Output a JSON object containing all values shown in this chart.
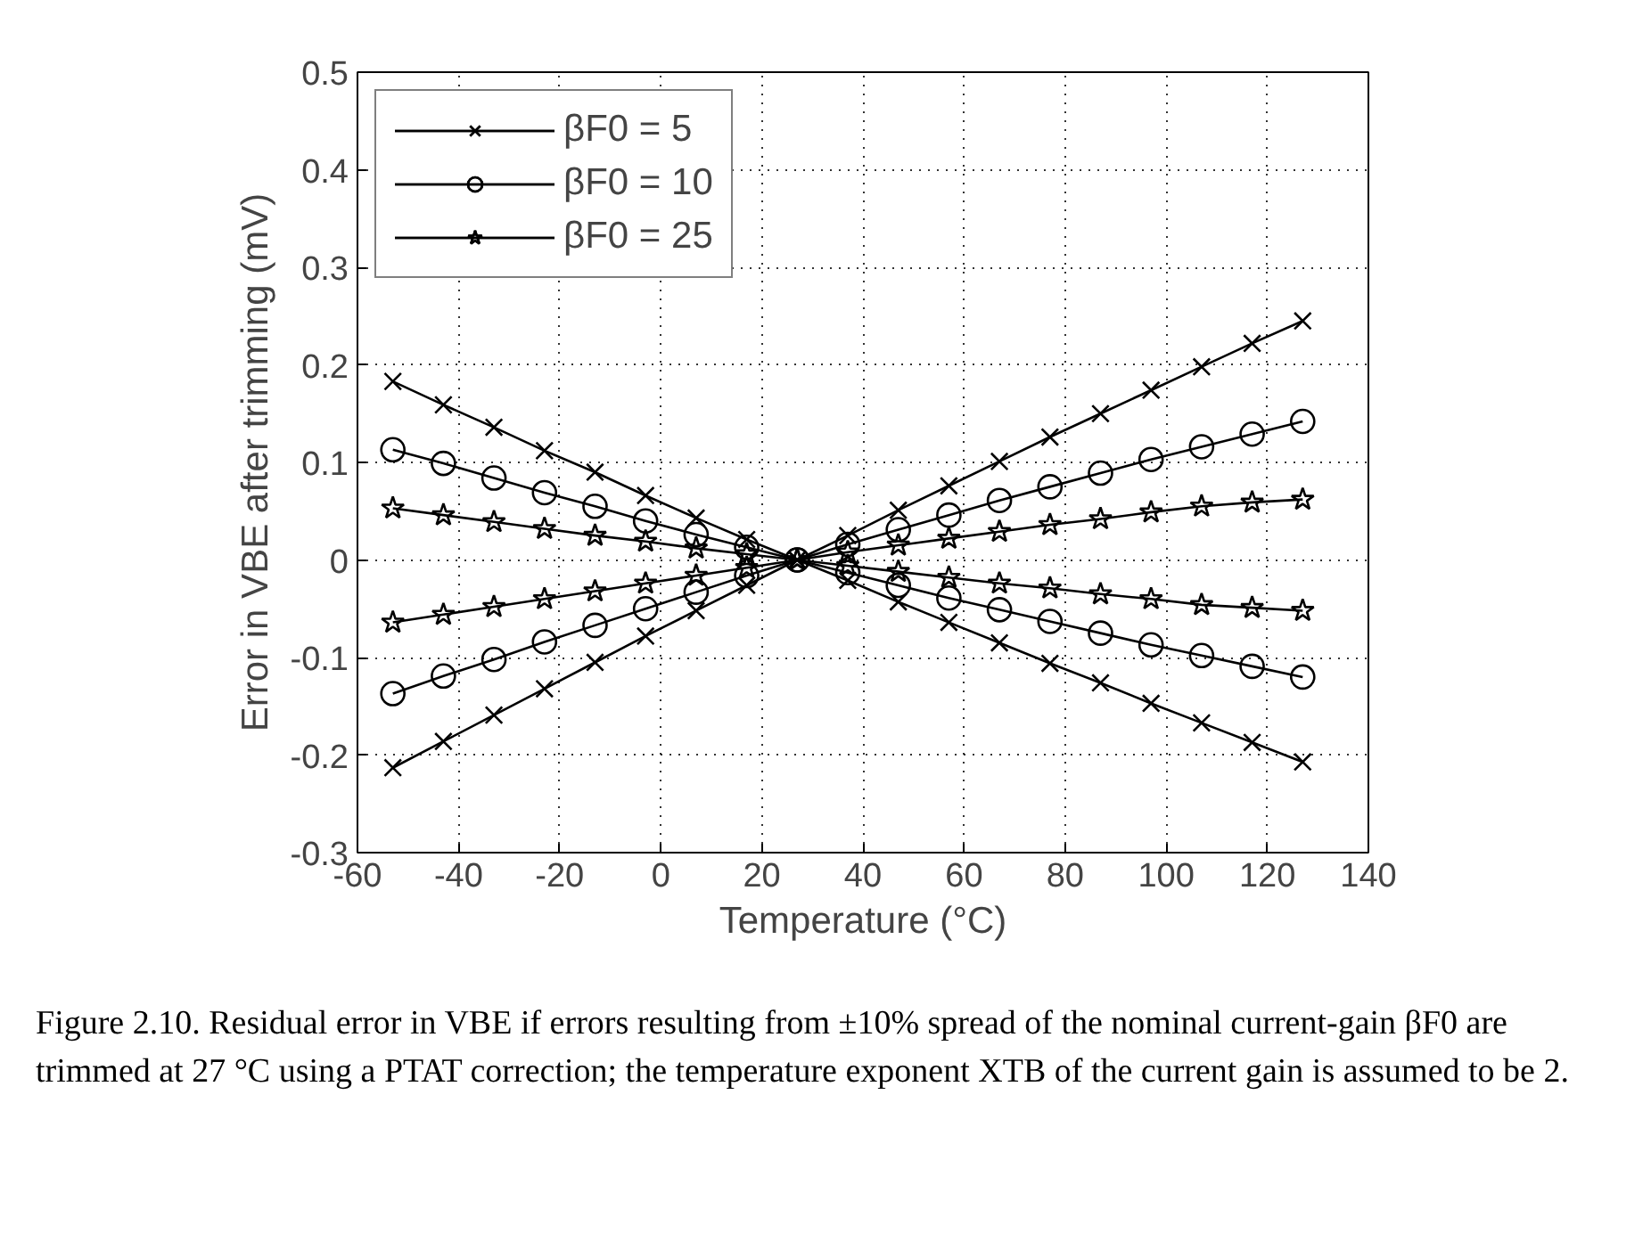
{
  "chart_data": {
    "type": "line",
    "xlabel": "Temperature (°C)",
    "ylabel": "Error in VBE after trimming (mV)",
    "x": [
      -53,
      -43,
      -33,
      -23,
      -13,
      -3,
      7,
      17,
      27,
      37,
      47,
      57,
      67,
      77,
      87,
      97,
      107,
      117,
      127
    ],
    "series": [
      {
        "name": "βF0 = 5",
        "color": "#000000",
        "marker": "cross",
        "values": [
          0.183,
          0.159,
          0.136,
          0.112,
          0.09,
          0.066,
          0.043,
          0.021,
          0,
          -0.021,
          -0.043,
          -0.064,
          -0.085,
          -0.106,
          -0.126,
          -0.147,
          -0.167,
          -0.187,
          -0.207
        ]
      },
      {
        "color": "#000000",
        "marker": "cross",
        "values": [
          -0.213,
          -0.186,
          -0.159,
          -0.132,
          -0.105,
          -0.078,
          -0.052,
          -0.026,
          0,
          0.025,
          0.051,
          0.076,
          0.101,
          0.126,
          0.15,
          0.174,
          0.198,
          0.222,
          0.245
        ]
      },
      {
        "name": "βF0 = 10",
        "color": "#000000",
        "marker": "circle",
        "values": [
          0.113,
          0.099,
          0.084,
          0.069,
          0.055,
          0.04,
          0.026,
          0.013,
          0,
          -0.013,
          -0.026,
          -0.039,
          -0.051,
          -0.063,
          -0.075,
          -0.087,
          -0.098,
          -0.109,
          -0.12
        ]
      },
      {
        "color": "#000000",
        "marker": "circle",
        "values": [
          -0.137,
          -0.119,
          -0.102,
          -0.084,
          -0.067,
          -0.05,
          -0.033,
          -0.016,
          0,
          0.016,
          0.031,
          0.046,
          0.061,
          0.075,
          0.089,
          0.103,
          0.116,
          0.129,
          0.142
        ]
      },
      {
        "name": "βF0 = 25",
        "color": "#000000",
        "marker": "star",
        "values": [
          0.053,
          0.046,
          0.039,
          0.032,
          0.025,
          0.019,
          0.012,
          0.006,
          0,
          -0.006,
          -0.012,
          -0.018,
          -0.024,
          -0.029,
          -0.035,
          -0.04,
          -0.046,
          -0.049,
          -0.052
        ]
      },
      {
        "color": "#000000",
        "marker": "star",
        "values": [
          -0.064,
          -0.056,
          -0.048,
          -0.04,
          -0.032,
          -0.024,
          -0.016,
          -0.008,
          0,
          0.008,
          0.015,
          0.022,
          0.029,
          0.036,
          0.042,
          0.049,
          0.055,
          0.059,
          0.062
        ]
      }
    ],
    "xlim": [
      -60,
      140
    ],
    "xticks": [
      -60,
      -40,
      -20,
      0,
      20,
      40,
      60,
      80,
      100,
      120,
      140
    ],
    "ylim": [
      -0.3,
      0.5
    ],
    "yticks": [
      -0.3,
      -0.2,
      -0.1,
      0,
      0.1,
      0.2,
      0.3,
      0.4,
      0.5
    ],
    "grid": true,
    "legend": "top left",
    "line_style": "solid",
    "annotations": [
      "Figure 2.10. Residual error in VBE if errors resulting from ±10% spread of the nominal current-gain βF0 are trimmed at 27 °C using a PTAT correction; the temperature exponent XTB of the current gain is assumed to be 2."
    ]
  }
}
